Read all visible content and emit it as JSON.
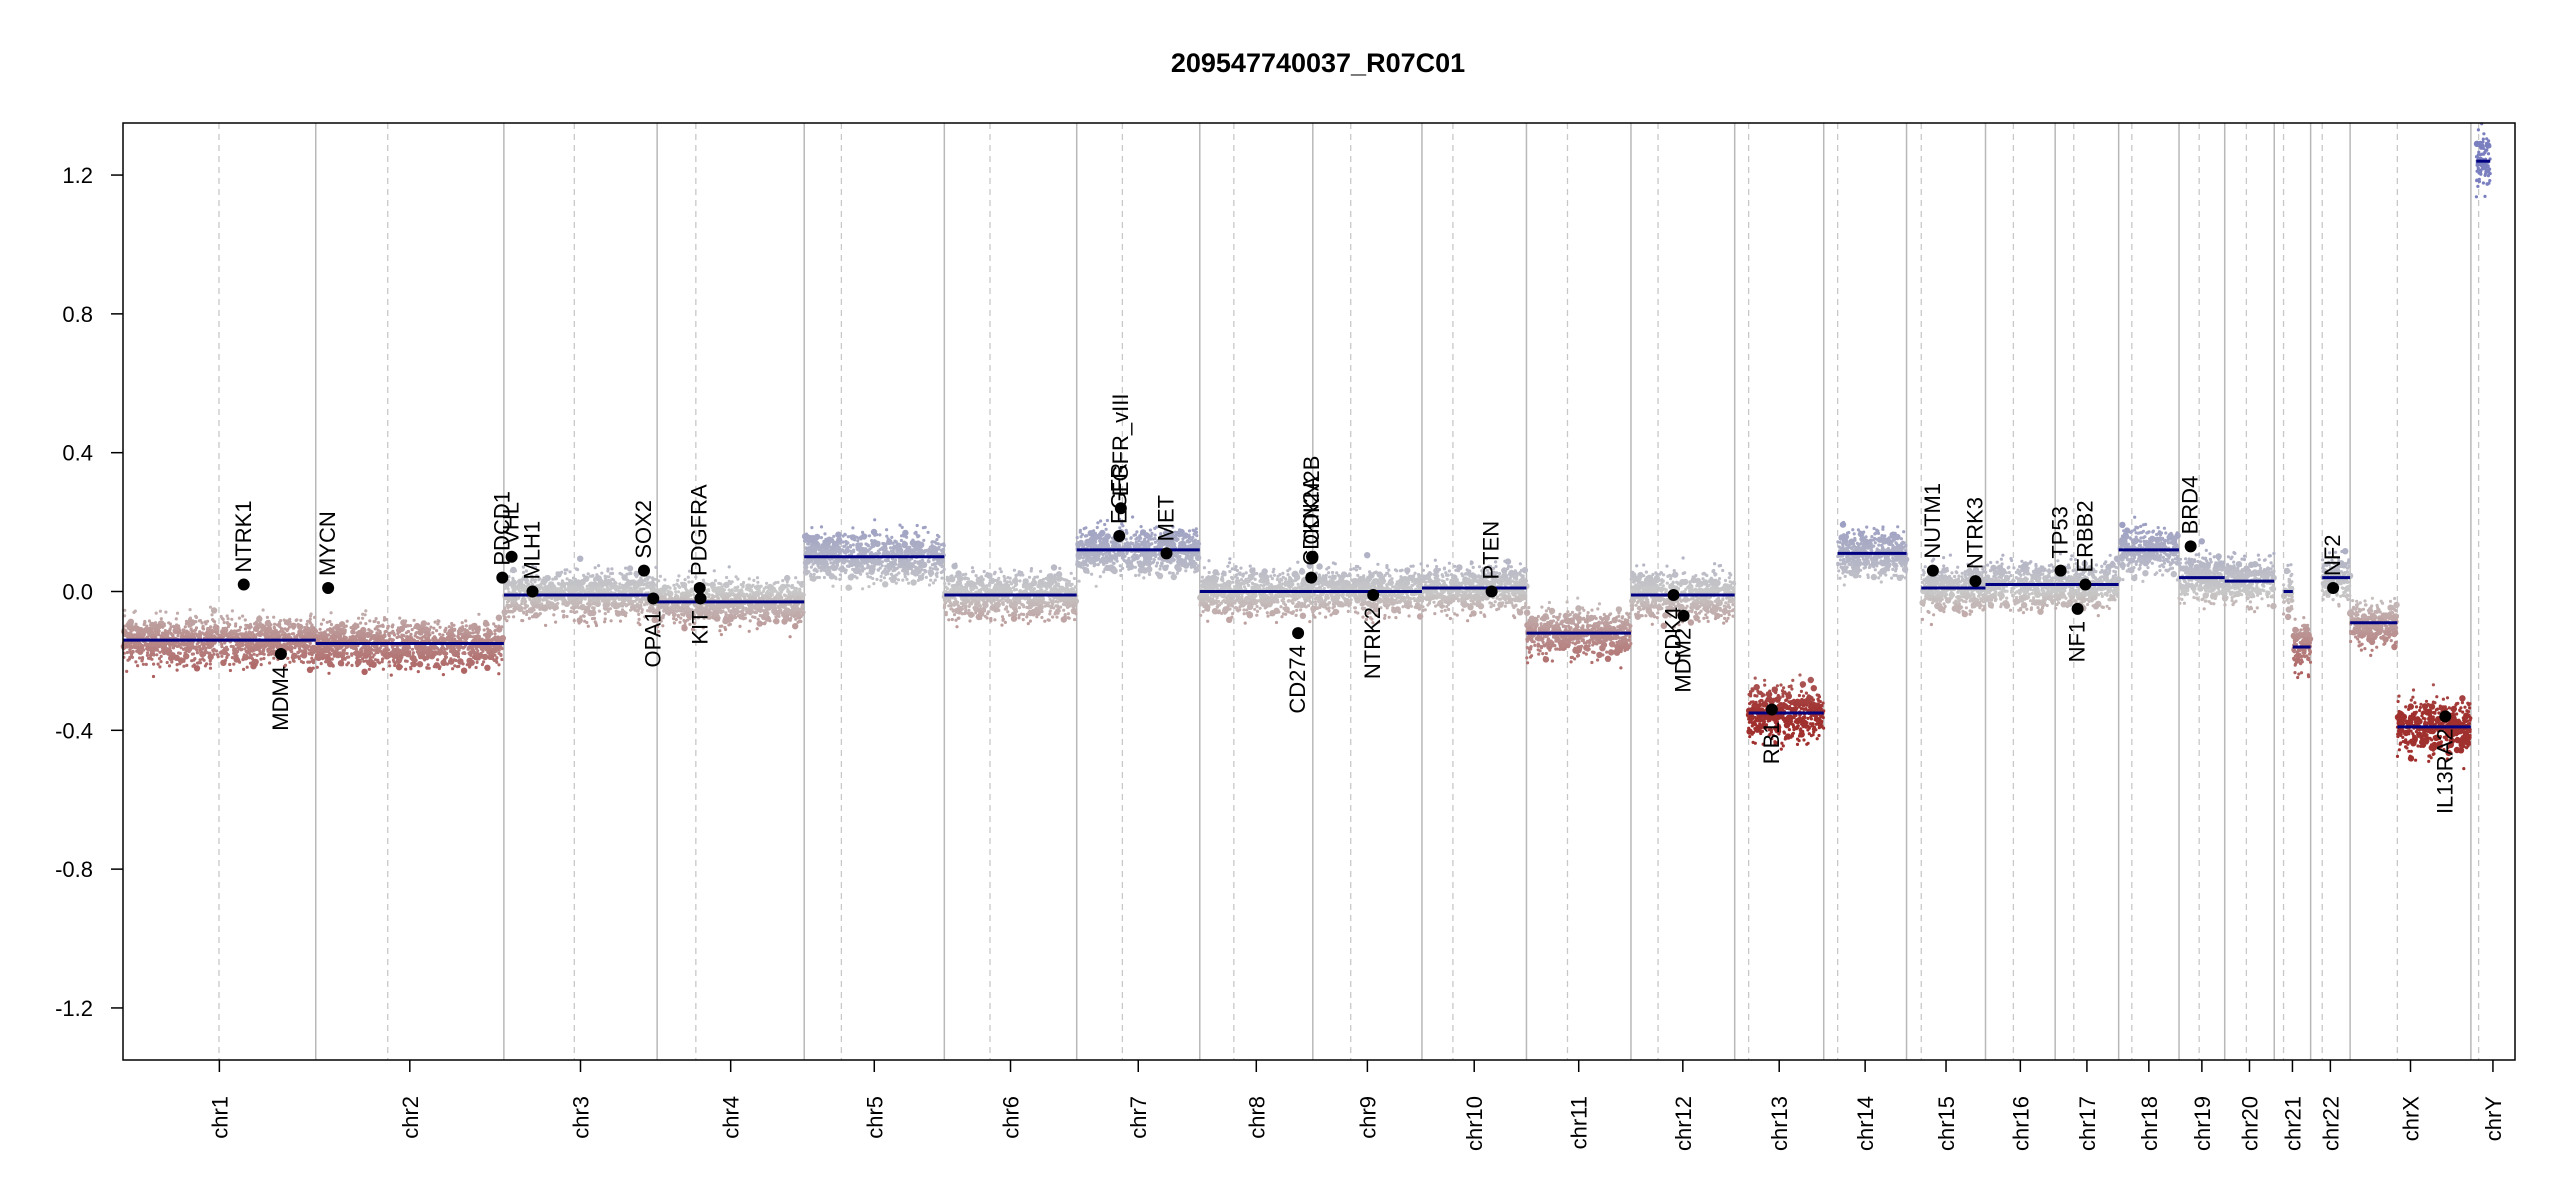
{
  "chart_data": {
    "type": "scatter",
    "title": "209547740037_R07C01",
    "xlabel": "",
    "ylabel": "",
    "ylim": [
      -1.35,
      1.35
    ],
    "yticks": [
      -1.2,
      -0.8,
      -0.4,
      0.0,
      0.4,
      0.8,
      1.2
    ],
    "ytick_labels": [
      "-1.2",
      "-0.8",
      "-0.4",
      "0.0",
      "0.4",
      "0.8",
      "1.2"
    ],
    "grid": false,
    "colors": {
      "gain": "#7a7fbf",
      "neutral": "#c8c8c8",
      "loss": "#a0302e",
      "segment": "#000080",
      "gene_point": "#000000"
    },
    "chromosomes": [
      {
        "name": "chr1",
        "start": 0,
        "end": 249,
        "centromere": 124,
        "segments": [
          [
            0,
            249,
            -0.14
          ]
        ]
      },
      {
        "name": "chr2",
        "start": 249,
        "end": 492,
        "centromere": 342,
        "segments": [
          [
            249,
            492,
            -0.15
          ]
        ]
      },
      {
        "name": "chr3",
        "start": 492,
        "end": 690,
        "centromere": 583,
        "segments": [
          [
            492,
            690,
            -0.01
          ]
        ]
      },
      {
        "name": "chr4",
        "start": 690,
        "end": 880,
        "centromere": 740,
        "segments": [
          [
            690,
            880,
            -0.03
          ]
        ]
      },
      {
        "name": "chr5",
        "start": 880,
        "end": 1061,
        "centromere": 928,
        "segments": [
          [
            880,
            1061,
            0.1
          ]
        ]
      },
      {
        "name": "chr6",
        "start": 1061,
        "end": 1232,
        "centromere": 1120,
        "segments": [
          [
            1061,
            1232,
            -0.01
          ]
        ]
      },
      {
        "name": "chr7",
        "start": 1232,
        "end": 1391,
        "centromere": 1291,
        "segments": [
          [
            1232,
            1391,
            0.12
          ]
        ]
      },
      {
        "name": "chr8",
        "start": 1391,
        "end": 1537,
        "centromere": 1435,
        "segments": [
          [
            1391,
            1537,
            0.0
          ]
        ]
      },
      {
        "name": "chr9",
        "start": 1537,
        "end": 1678,
        "centromere": 1586,
        "segments": [
          [
            1537,
            1678,
            0.0
          ]
        ]
      },
      {
        "name": "chr10",
        "start": 1678,
        "end": 1813,
        "centromere": 1718,
        "segments": [
          [
            1678,
            1813,
            0.01
          ]
        ]
      },
      {
        "name": "chr11",
        "start": 1813,
        "end": 1948,
        "centromere": 1866,
        "segments": [
          [
            1813,
            1948,
            -0.12
          ]
        ]
      },
      {
        "name": "chr12",
        "start": 1948,
        "end": 2082,
        "centromere": 1983,
        "segments": [
          [
            1948,
            2082,
            -0.01
          ]
        ]
      },
      {
        "name": "chr13",
        "start": 2082,
        "end": 2197,
        "centromere": 2100,
        "segments": [
          [
            2100,
            2197,
            -0.35
          ]
        ]
      },
      {
        "name": "chr14",
        "start": 2197,
        "end": 2304,
        "centromere": 2215,
        "segments": [
          [
            2215,
            2304,
            0.11
          ]
        ]
      },
      {
        "name": "chr15",
        "start": 2304,
        "end": 2406,
        "centromere": 2323,
        "segments": [
          [
            2323,
            2406,
            0.01
          ]
        ]
      },
      {
        "name": "chr16",
        "start": 2406,
        "end": 2496,
        "centromere": 2442,
        "segments": [
          [
            2406,
            2496,
            0.02
          ]
        ]
      },
      {
        "name": "chr17",
        "start": 2496,
        "end": 2578,
        "centromere": 2520,
        "segments": [
          [
            2496,
            2578,
            0.02
          ]
        ]
      },
      {
        "name": "chr18",
        "start": 2578,
        "end": 2656,
        "centromere": 2595,
        "segments": [
          [
            2578,
            2656,
            0.12
          ]
        ]
      },
      {
        "name": "chr19",
        "start": 2656,
        "end": 2715,
        "centromere": 2682,
        "segments": [
          [
            2656,
            2715,
            0.04
          ]
        ]
      },
      {
        "name": "chr20",
        "start": 2715,
        "end": 2779,
        "centromere": 2743,
        "segments": [
          [
            2715,
            2779,
            0.03
          ]
        ]
      },
      {
        "name": "chr21",
        "start": 2779,
        "end": 2826,
        "centromere": 2791,
        "segments": [
          [
            2791,
            2803,
            0.0
          ],
          [
            2803,
            2826,
            -0.16
          ]
        ]
      },
      {
        "name": "chr22",
        "start": 2826,
        "end": 2877,
        "centromere": 2841,
        "segments": [
          [
            2841,
            2877,
            0.04
          ]
        ]
      },
      {
        "name": "chrX",
        "start": 2877,
        "end": 3033,
        "centromere": 2938,
        "segments": [
          [
            2877,
            2938,
            -0.09
          ],
          [
            2938,
            3033,
            -0.39
          ]
        ]
      },
      {
        "name": "chrY",
        "start": 3033,
        "end": 3090,
        "centromere": 3043,
        "segments": [
          [
            3040,
            3058,
            1.24
          ]
        ]
      }
    ],
    "genes": [
      {
        "name": "NTRK1",
        "x": 156,
        "y": 0.02,
        "label_side": "up"
      },
      {
        "name": "MDM4",
        "x": 204,
        "y": -0.18,
        "label_side": "down"
      },
      {
        "name": "MYCN",
        "x": 265,
        "y": 0.01,
        "label_side": "up"
      },
      {
        "name": "PDCD1",
        "x": 490,
        "y": 0.04,
        "label_side": "up"
      },
      {
        "name": "VHL",
        "x": 502,
        "y": 0.1,
        "label_side": "up"
      },
      {
        "name": "MLH1",
        "x": 529,
        "y": 0.0,
        "label_side": "up"
      },
      {
        "name": "SOX2",
        "x": 673,
        "y": 0.06,
        "label_side": "up"
      },
      {
        "name": "OPA1",
        "x": 685,
        "y": -0.02,
        "label_side": "down"
      },
      {
        "name": "PDGFRA",
        "x": 745,
        "y": 0.01,
        "label_side": "up"
      },
      {
        "name": "KIT",
        "x": 746,
        "y": -0.02,
        "label_side": "down"
      },
      {
        "name": "EGFR",
        "x": 1287,
        "y": 0.16,
        "label_side": "up"
      },
      {
        "name": "EGFR_vIII",
        "x": 1289,
        "y": 0.24,
        "label_side": "up"
      },
      {
        "name": "MET",
        "x": 1348,
        "y": 0.11,
        "label_side": "up"
      },
      {
        "name": "CD274",
        "x": 1518,
        "y": -0.12,
        "label_side": "down"
      },
      {
        "name": "CDKN2A",
        "x": 1535,
        "y": 0.04,
        "label_side": "up"
      },
      {
        "name": "CDKN2B",
        "x": 1536,
        "y": 0.1,
        "label_side": "up"
      },
      {
        "name": "NTRK2",
        "x": 1615,
        "y": -0.01,
        "label_side": "down"
      },
      {
        "name": "PTEN",
        "x": 1768,
        "y": 0.0,
        "label_side": "up"
      },
      {
        "name": "CDK4",
        "x": 2003,
        "y": -0.01,
        "label_side": "down"
      },
      {
        "name": "MDM2",
        "x": 2016,
        "y": -0.07,
        "label_side": "down"
      },
      {
        "name": "RB1",
        "x": 2130,
        "y": -0.34,
        "label_side": "down"
      },
      {
        "name": "NUTM1",
        "x": 2338,
        "y": 0.06,
        "label_side": "up"
      },
      {
        "name": "NTRK3",
        "x": 2393,
        "y": 0.03,
        "label_side": "up"
      },
      {
        "name": "TP53",
        "x": 2503,
        "y": 0.06,
        "label_side": "up"
      },
      {
        "name": "NF1",
        "x": 2525,
        "y": -0.05,
        "label_side": "down"
      },
      {
        "name": "ERBB2",
        "x": 2535,
        "y": 0.02,
        "label_side": "up"
      },
      {
        "name": "BRD4",
        "x": 2671,
        "y": 0.13,
        "label_side": "up"
      },
      {
        "name": "NF2",
        "x": 2855,
        "y": 0.01,
        "label_side": "up"
      },
      {
        "name": "IL13RA2",
        "x": 3000,
        "y": -0.36,
        "label_side": "down"
      }
    ]
  }
}
